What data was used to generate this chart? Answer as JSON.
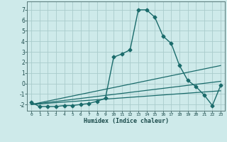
{
  "xlabel": "Humidex (Indice chaleur)",
  "background_color": "#ceeaea",
  "grid_color": "#aacccc",
  "line_color": "#1a6b6b",
  "xlim": [
    -0.5,
    23.5
  ],
  "ylim": [
    -2.6,
    7.8
  ],
  "yticks": [
    -2,
    -1,
    0,
    1,
    2,
    3,
    4,
    5,
    6,
    7
  ],
  "xticks": [
    0,
    1,
    2,
    3,
    4,
    5,
    6,
    7,
    8,
    9,
    10,
    11,
    12,
    13,
    14,
    15,
    16,
    17,
    18,
    19,
    20,
    21,
    22,
    23
  ],
  "series": [
    {
      "x": [
        0,
        1,
        2,
        3,
        4,
        5,
        6,
        7,
        8,
        9,
        10,
        11,
        12,
        13,
        14,
        15,
        16,
        17,
        18,
        19,
        20,
        21,
        22,
        23
      ],
      "y": [
        -1.8,
        -2.2,
        -2.2,
        -2.2,
        -2.1,
        -2.1,
        -2.0,
        -1.9,
        -1.7,
        -1.4,
        2.5,
        2.8,
        3.2,
        7.0,
        7.0,
        6.3,
        4.5,
        3.8,
        1.7,
        0.3,
        -0.3,
        -1.1,
        -2.1,
        -0.2
      ],
      "marker": "D",
      "markersize": 2.5,
      "linewidth": 1.0
    },
    {
      "x": [
        0,
        23
      ],
      "y": [
        -2.0,
        1.7
      ],
      "marker": null,
      "linewidth": 0.9
    },
    {
      "x": [
        0,
        23
      ],
      "y": [
        -2.0,
        0.2
      ],
      "marker": null,
      "linewidth": 0.9
    },
    {
      "x": [
        0,
        23
      ],
      "y": [
        -2.0,
        -0.7
      ],
      "marker": null,
      "linewidth": 0.9
    }
  ]
}
